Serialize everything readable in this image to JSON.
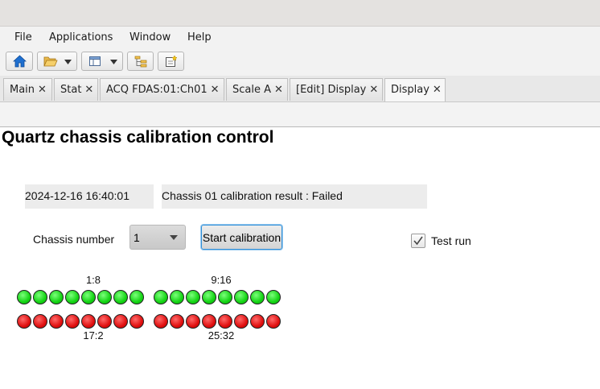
{
  "menu": [
    "File",
    "Applications",
    "Window",
    "Help"
  ],
  "toolbar": {
    "icons": [
      "home-icon",
      "folder-open-icon",
      "layout-icon",
      "tree-icon",
      "new-panel-icon"
    ]
  },
  "tabs": [
    {
      "label": "Main"
    },
    {
      "label": "Stat"
    },
    {
      "label": "ACQ FDAS:01:Ch01"
    },
    {
      "label": "Scale A"
    },
    {
      "label": "[Edit] Display"
    },
    {
      "label": "Display",
      "active": true
    }
  ],
  "tab_close": "✕",
  "page_title": "Quartz chassis calibration control",
  "timestamp": "2024-12-16 16:40:01",
  "result_text": "Chassis 01 calibration result : Failed",
  "chassis_label": "Chassis number",
  "chassis_value": "1",
  "start_label": "Start calibration",
  "test_run": {
    "label": "Test run",
    "checked": true
  },
  "led_groups": [
    {
      "label": "1:8",
      "color": "green",
      "count": 8
    },
    {
      "label": "9:16",
      "color": "green",
      "count": 8
    },
    {
      "label": "17:2",
      "color": "red",
      "count": 8
    },
    {
      "label": "25:32",
      "color": "red",
      "count": 8
    }
  ],
  "colors": {
    "green": "#14d414",
    "red": "#e01010",
    "accent": "#2f8fd8"
  }
}
